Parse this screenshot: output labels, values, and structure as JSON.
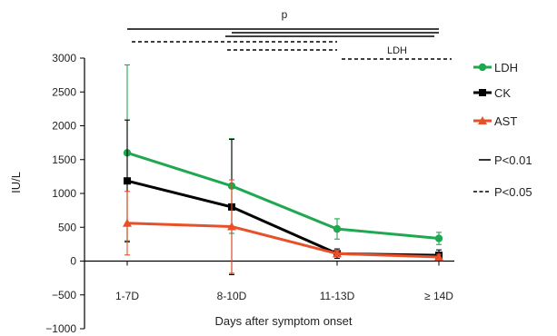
{
  "chart_data": {
    "type": "line",
    "title": "",
    "xlabel": "Days after symptom onset",
    "ylabel": "IU/L",
    "ylim": [
      -1000,
      3000
    ],
    "yticks": [
      -1000,
      -500,
      0,
      500,
      1000,
      1500,
      2000,
      2500,
      3000
    ],
    "yticklabels": [
      "−1000",
      "−500",
      "0",
      "500",
      "1000",
      "1500",
      "2000",
      "2500",
      "3000"
    ],
    "categories": [
      "1-7D",
      "8-10D",
      "11-13D",
      "≥ 14D"
    ],
    "series": [
      {
        "name": "LDH",
        "color": "#1fa84f",
        "marker": "circle",
        "values": [
          1600,
          1110,
          475,
          335
        ],
        "error": [
          1300,
          700,
          150,
          90
        ]
      },
      {
        "name": "CK",
        "color": "#000000",
        "marker": "square",
        "values": [
          1185,
          800,
          110,
          85
        ],
        "error": [
          900,
          1000,
          70,
          80
        ]
      },
      {
        "name": "AST",
        "color": "#e8502a",
        "marker": "triangle",
        "values": [
          560,
          510,
          110,
          60
        ],
        "error": [
          470,
          690,
          40,
          40
        ]
      }
    ],
    "significance": {
      "top_label": "p",
      "bracket_label": "LDH",
      "legend": [
        {
          "style": "solid",
          "label": "P<0.01"
        },
        {
          "style": "dashed",
          "label": "P<0.05"
        }
      ]
    },
    "legend_position": "right"
  }
}
